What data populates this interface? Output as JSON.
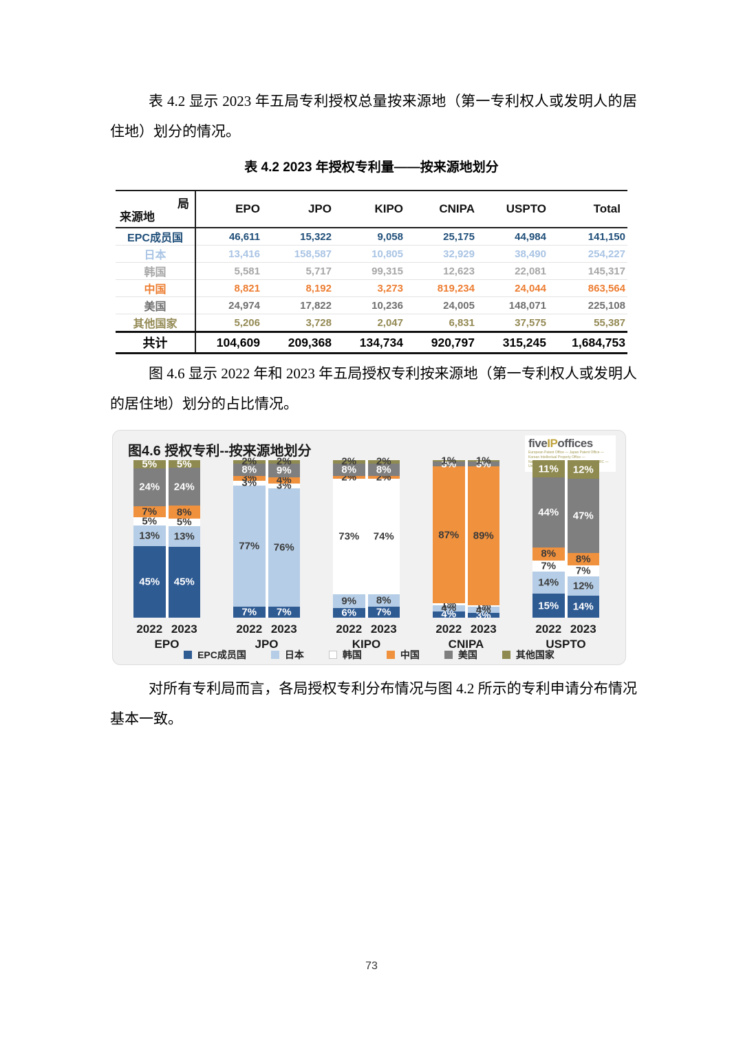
{
  "page": {
    "number": "73"
  },
  "paragraphs": {
    "p1": "表 4.2 显示 2023 年五局专利授权总量按来源地（第一专利权人或发明人的居住地）划分的情况。",
    "p2": "图 4.6 显示 2022 年和 2023 年五局授权专利按来源地（第一专利权人或发明人的居住地）划分的占比情况。",
    "p3": "对所有专利局而言，各局授权专利分布情况与图 4.2 所示的专利申请分布情况基本一致。"
  },
  "table": {
    "caption": "表 4.2 2023 年授权专利量——按来源地划分",
    "corner": {
      "top": "局",
      "bottom": "来源地"
    },
    "columns": [
      "EPO",
      "JPO",
      "KIPO",
      "CNIPA",
      "USPTO",
      "Total"
    ],
    "rows": [
      {
        "label": "EPC成员国",
        "color": "#1F4E79",
        "values": [
          "46,611",
          "15,322",
          "9,058",
          "25,175",
          "44,984",
          "141,150"
        ]
      },
      {
        "label": "日本",
        "color": "#A9C4E4",
        "values": [
          "13,416",
          "158,587",
          "10,805",
          "32,929",
          "38,490",
          "254,227"
        ]
      },
      {
        "label": "韩国",
        "color": "#A6A6A6",
        "values": [
          "5,581",
          "5,717",
          "99,315",
          "12,623",
          "22,081",
          "145,317"
        ]
      },
      {
        "label": "中国",
        "color": "#ED7D31",
        "values": [
          "8,821",
          "8,192",
          "3,273",
          "819,234",
          "24,044",
          "863,564"
        ]
      },
      {
        "label": "美国",
        "color": "#6F6F6F",
        "values": [
          "24,974",
          "17,822",
          "10,236",
          "24,005",
          "148,071",
          "225,108"
        ]
      },
      {
        "label": "其他国家",
        "color": "#938953",
        "values": [
          "5,206",
          "3,728",
          "2,047",
          "6,831",
          "37,575",
          "55,387"
        ]
      }
    ],
    "total_row": {
      "label": "共计",
      "color": "#000000",
      "values": [
        "104,609",
        "209,368",
        "134,734",
        "920,797",
        "315,245",
        "1,684,753"
      ]
    }
  },
  "chart": {
    "panel_title": "图4.6 授权专利--按来源地划分",
    "logo": {
      "five": "five",
      "ip": "IP",
      "offices": "offices",
      "gold": "#BFA33C",
      "dark": "#55565A",
      "sublines": [
        "European Patent Office — Japan Patent Office —",
        "Korean Intellectual Property Office —",
        "National Intellectual Property Administration, PRC —",
        "United States Patent and Trademark Office"
      ]
    }
  },
  "chart_data": {
    "type": "bar",
    "stacked": true,
    "percent": true,
    "title": "图4.6 授权专利--按来源地划分",
    "groups": [
      "EPO",
      "JPO",
      "KIPO",
      "CNIPA",
      "USPTO"
    ],
    "years": [
      "2022",
      "2023"
    ],
    "categories": [
      "EPO 2022",
      "EPO 2023",
      "JPO 2022",
      "JPO 2023",
      "KIPO 2022",
      "KIPO 2023",
      "CNIPA 2022",
      "CNIPA 2023",
      "USPTO 2022",
      "USPTO 2023"
    ],
    "series": [
      {
        "name": "EPC成员国",
        "color": "#2F5B93",
        "values": [
          45,
          45,
          7,
          7,
          6,
          7,
          4,
          3,
          15,
          14
        ]
      },
      {
        "name": "日本",
        "color": "#B5CDE6",
        "values": [
          13,
          13,
          77,
          76,
          9,
          8,
          4,
          4,
          14,
          12
        ]
      },
      {
        "name": "韩国",
        "color": "#FFFFFF",
        "values": [
          5,
          5,
          3,
          3,
          73,
          74,
          1,
          1,
          7,
          7
        ]
      },
      {
        "name": "中国",
        "color": "#F0913D",
        "values": [
          7,
          8,
          3,
          4,
          2,
          2,
          87,
          89,
          8,
          8
        ]
      },
      {
        "name": "美国",
        "color": "#7F7F7F",
        "values": [
          24,
          24,
          8,
          9,
          8,
          8,
          3,
          3,
          44,
          47
        ]
      },
      {
        "name": "其他国家",
        "color": "#8F8A50",
        "values": [
          5,
          5,
          2,
          2,
          2,
          2,
          1,
          1,
          11,
          12
        ]
      }
    ],
    "ylim": [
      0,
      100
    ],
    "legend_position": "bottom"
  }
}
